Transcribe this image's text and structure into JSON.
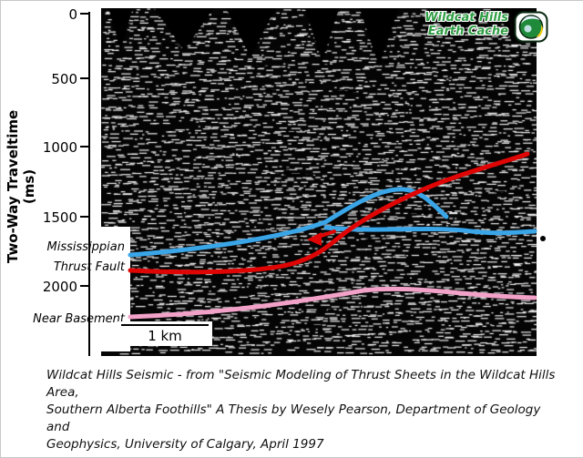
{
  "figure": {
    "badge": {
      "line1": "Wildcat Hills",
      "line2": "Earth Cache",
      "text_color": "#2f9e44"
    },
    "axis": {
      "title": "Two-Way Traveltime (ms)",
      "ticks": [
        "0",
        "500",
        "1000",
        "1500",
        "2000"
      ]
    },
    "horizons": [
      {
        "label": "Mississippian",
        "color": "#3aa6e8"
      },
      {
        "label": "Thrust Fault",
        "color": "#e00505"
      },
      {
        "label": "Near Basement",
        "color": "#f2a2c8"
      }
    ],
    "scale_bar": {
      "label": "1 km"
    },
    "caption": {
      "line1": "Wildcat Hills Seismic - from \"Seismic Modeling of Thrust Sheets in the Wildcat Hills Area,",
      "line2": "Southern Alberta Foothills\"  A Thesis by Wesely Pearson, Department of Geology and",
      "line3": "Geophysics, University of Calgary, April 1997"
    }
  }
}
